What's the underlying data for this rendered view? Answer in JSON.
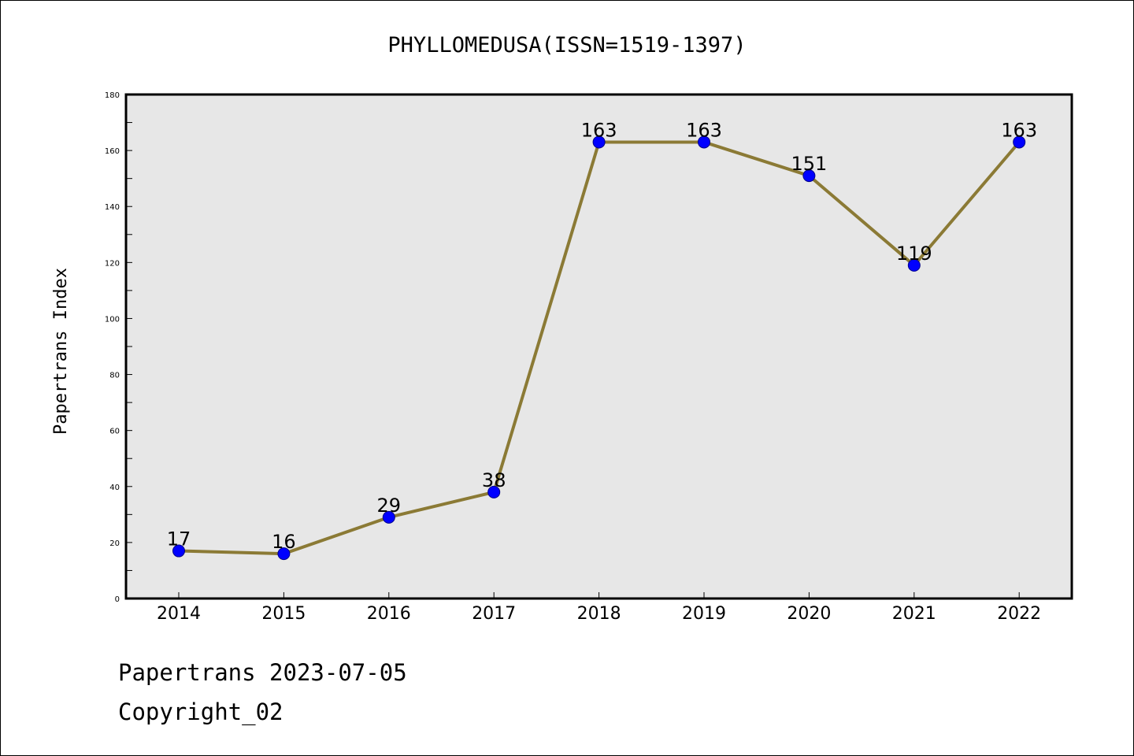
{
  "chart_data": {
    "type": "line",
    "title": "PHYLLOMEDUSA(ISSN=1519-1397)",
    "xlabel": "",
    "ylabel": "Papertrans Index",
    "categories": [
      "2014",
      "2015",
      "2016",
      "2017",
      "2018",
      "2019",
      "2020",
      "2021",
      "2022"
    ],
    "values": [
      17,
      16,
      29,
      38,
      163,
      163,
      151,
      119,
      163
    ],
    "ylim": [
      0,
      180
    ],
    "yticks": [
      0,
      20,
      40,
      60,
      80,
      100,
      120,
      140,
      160,
      180
    ],
    "grid": false,
    "data_labels": true,
    "colors": {
      "line": "#8b7a35",
      "marker_fill": "#0000ff",
      "marker_edge": "#00008b",
      "plot_background": "#e7e7e7"
    }
  },
  "footer": {
    "line1": "Papertrans 2023-07-05",
    "line2": "Copyright_02"
  }
}
